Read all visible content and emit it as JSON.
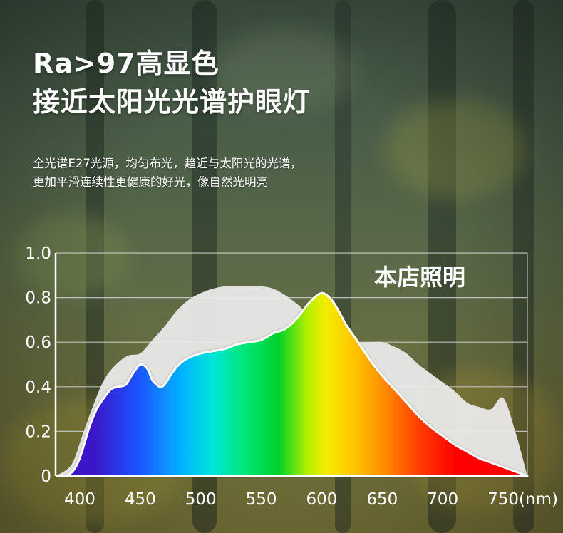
{
  "headline": {
    "line1": "Ra>97高显色",
    "line2": "接近太阳光光谱护眼灯"
  },
  "description": {
    "line1": "全光谱E27光源，均匀布光，趋近与太阳光的光谱，",
    "line2": "更加平滑连续性更健康的好光，像自然光明亮"
  },
  "colors": {
    "sunlight_fill": "#e9e9e9",
    "product_outline": "#ffffff",
    "axis_line": "#ffffff",
    "grid_line": "#d8d8d8"
  },
  "chart_data": {
    "type": "area",
    "x_unit_label": "(nm)",
    "x_ticks": [
      400,
      450,
      500,
      550,
      600,
      650,
      700,
      750
    ],
    "y_ticks": [
      "0",
      "0.2",
      "0.4",
      "0.6",
      "0.8",
      "1.0"
    ],
    "xlim": [
      380,
      770
    ],
    "ylim": [
      0,
      1.0
    ],
    "grid": true,
    "legend_placement": "top-right",
    "series": [
      {
        "key": "sunlight",
        "x": [
          380,
          393,
          402,
          410,
          420,
          430,
          440,
          450,
          460,
          470,
          480,
          490,
          500,
          510,
          520,
          530,
          540,
          550,
          560,
          570,
          580,
          590,
          600,
          610,
          620,
          630,
          640,
          650,
          660,
          670,
          680,
          690,
          700,
          710,
          720,
          730,
          740,
          750,
          760,
          770
        ],
        "y": [
          0.0,
          0.05,
          0.18,
          0.3,
          0.43,
          0.5,
          0.54,
          0.55,
          0.61,
          0.67,
          0.74,
          0.79,
          0.82,
          0.84,
          0.85,
          0.85,
          0.85,
          0.85,
          0.84,
          0.81,
          0.77,
          0.72,
          0.7,
          0.65,
          0.61,
          0.6,
          0.6,
          0.6,
          0.58,
          0.55,
          0.5,
          0.46,
          0.42,
          0.38,
          0.33,
          0.31,
          0.3,
          0.35,
          0.2,
          0.0
        ]
      },
      {
        "key": "product",
        "name": "本店照明",
        "x": [
          388,
          394,
          400,
          408,
          414,
          420,
          426,
          432,
          438,
          444,
          450,
          456,
          460,
          466,
          470,
          476,
          482,
          490,
          500,
          510,
          520,
          530,
          540,
          550,
          560,
          570,
          580,
          590,
          600,
          608,
          614,
          620,
          630,
          640,
          650,
          660,
          670,
          680,
          690,
          700,
          710,
          720,
          730,
          740,
          750,
          760,
          770
        ],
        "y": [
          0.0,
          0.02,
          0.08,
          0.22,
          0.3,
          0.35,
          0.39,
          0.4,
          0.41,
          0.46,
          0.5,
          0.48,
          0.43,
          0.4,
          0.41,
          0.46,
          0.5,
          0.53,
          0.55,
          0.56,
          0.57,
          0.59,
          0.6,
          0.61,
          0.64,
          0.66,
          0.71,
          0.78,
          0.82,
          0.79,
          0.74,
          0.68,
          0.6,
          0.52,
          0.45,
          0.39,
          0.33,
          0.27,
          0.22,
          0.18,
          0.14,
          0.11,
          0.08,
          0.06,
          0.04,
          0.02,
          0.0
        ]
      }
    ]
  }
}
